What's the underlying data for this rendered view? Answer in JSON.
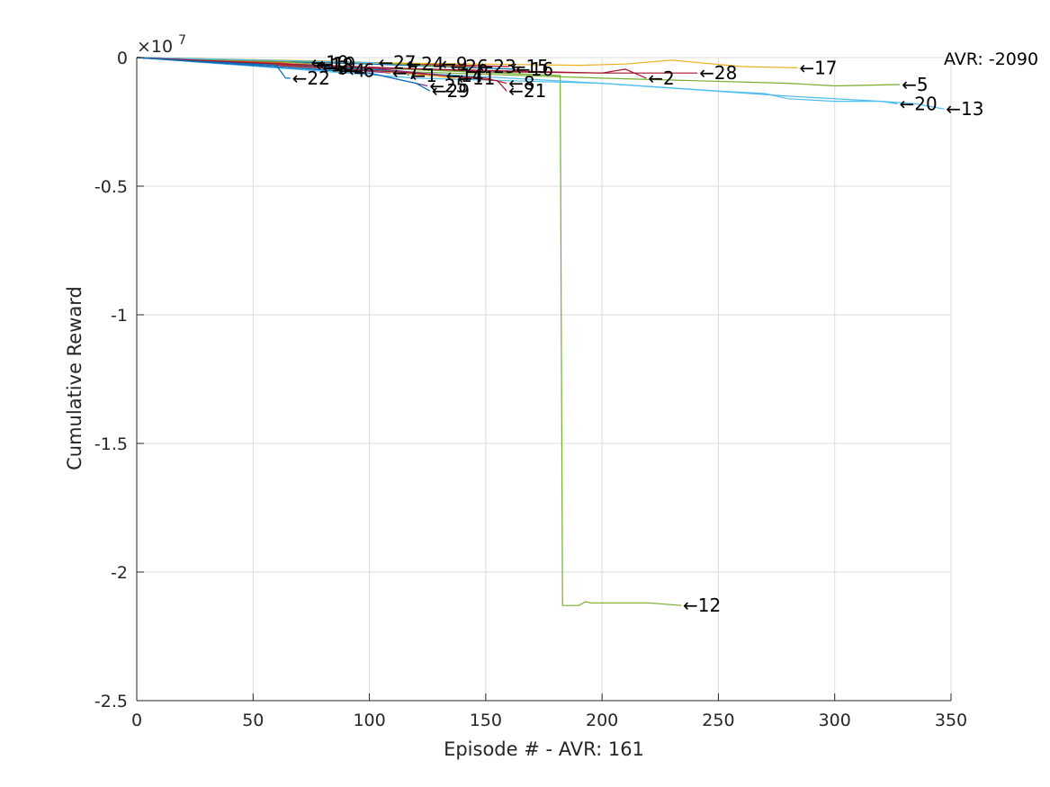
{
  "chart_data": {
    "type": "line",
    "title": "",
    "xlabel": "Episode # - AVR: 161",
    "ylabel": "Cumulative Reward",
    "xlim": [
      0,
      350
    ],
    "ylim": [
      -2.5,
      0
    ],
    "y_multiplier": "×10",
    "y_multiplier_exp": "7",
    "x_ticks": [
      "0",
      "50",
      "100",
      "150",
      "200",
      "250",
      "300",
      "350"
    ],
    "y_ticks": [
      "0",
      "-0.5",
      "-1",
      "-1.5",
      "-2",
      "-2.5"
    ],
    "grid": true,
    "annotation": "AVR: -2090",
    "series": [
      {
        "name": "1",
        "color": "#0072bd",
        "x": [
          0,
          60,
          100,
          115,
          117
        ],
        "y": [
          0,
          -0.025,
          -0.045,
          -0.055,
          -0.07
        ]
      },
      {
        "name": "2",
        "color": "#a2142f",
        "x": [
          0,
          80,
          150,
          200,
          210,
          219
        ],
        "y": [
          0,
          -0.03,
          -0.055,
          -0.06,
          -0.045,
          -0.08
        ]
      },
      {
        "name": "3",
        "color": "#d95319",
        "x": [
          0,
          50,
          79
        ],
        "y": [
          0,
          -0.02,
          -0.04
        ]
      },
      {
        "name": "4",
        "color": "#edb120",
        "x": [
          0,
          60,
          86
        ],
        "y": [
          0,
          -0.03,
          -0.05
        ]
      },
      {
        "name": "5",
        "color": "#77ac30",
        "x": [
          0,
          100,
          200,
          280,
          300,
          328
        ],
        "y": [
          0,
          -0.05,
          -0.08,
          -0.1,
          -0.11,
          -0.105
        ]
      },
      {
        "name": "6",
        "color": "#4dbeee",
        "x": [
          0,
          60,
          90
        ],
        "y": [
          0,
          -0.03,
          -0.05
        ]
      },
      {
        "name": "7",
        "color": "#7e2f8e",
        "x": [
          0,
          80,
          109
        ],
        "y": [
          0,
          -0.04,
          -0.06
        ]
      },
      {
        "name": "8",
        "color": "#a2142f",
        "x": [
          0,
          100,
          150,
          159
        ],
        "y": [
          0,
          -0.05,
          -0.08,
          -0.1
        ]
      },
      {
        "name": "9",
        "color": "#0072bd",
        "x": [
          0,
          100,
          130
        ],
        "y": [
          0,
          -0.02,
          -0.025
        ]
      },
      {
        "name": "10",
        "color": "#d95319",
        "x": [
          0,
          50,
          74
        ],
        "y": [
          0,
          -0.015,
          -0.02
        ]
      },
      {
        "name": "11",
        "color": "#edb120",
        "x": [
          0,
          100,
          137
        ],
        "y": [
          0,
          -0.05,
          -0.08
        ]
      },
      {
        "name": "12",
        "color": "#77ac30",
        "x": [
          0,
          100,
          182,
          183,
          190,
          193,
          195,
          220,
          234
        ],
        "y": [
          0,
          -0.04,
          -0.07,
          -2.13,
          -2.13,
          -2.115,
          -2.12,
          -2.12,
          -2.13
        ]
      },
      {
        "name": "13",
        "color": "#4dbeee",
        "x": [
          0,
          100,
          200,
          250,
          270,
          280,
          300,
          320,
          335,
          347
        ],
        "y": [
          0,
          -0.05,
          -0.1,
          -0.13,
          -0.14,
          -0.16,
          -0.17,
          -0.17,
          -0.18,
          -0.2
        ]
      },
      {
        "name": "14",
        "color": "#7e2f8e",
        "x": [
          0,
          100,
          132
        ],
        "y": [
          0,
          -0.04,
          -0.07
        ]
      },
      {
        "name": "15",
        "color": "#a2142f",
        "x": [
          0,
          100,
          160
        ],
        "y": [
          0,
          -0.02,
          -0.035
        ]
      },
      {
        "name": "16",
        "color": "#0072bd",
        "x": [
          0,
          100,
          162
        ],
        "y": [
          0,
          -0.025,
          -0.045
        ]
      },
      {
        "name": "17",
        "color": "#edb120",
        "x": [
          0,
          100,
          190,
          210,
          230,
          260,
          284
        ],
        "y": [
          0,
          -0.02,
          -0.03,
          -0.025,
          -0.01,
          -0.035,
          -0.04
        ]
      },
      {
        "name": "18",
        "color": "#d95319",
        "x": [
          0,
          60,
          76
        ],
        "y": [
          0,
          -0.02,
          -0.03
        ]
      },
      {
        "name": "19",
        "color": "#77ac30",
        "x": [
          0,
          60,
          77
        ],
        "y": [
          0,
          -0.015,
          -0.025
        ]
      },
      {
        "name": "20",
        "color": "#4dbeee",
        "x": [
          0,
          120,
          200,
          280,
          320,
          327
        ],
        "y": [
          0,
          -0.08,
          -0.1,
          -0.15,
          -0.17,
          -0.18
        ]
      },
      {
        "name": "21",
        "color": "#a2142f",
        "x": [
          0,
          120,
          155,
          159
        ],
        "y": [
          0,
          -0.06,
          -0.09,
          -0.13
        ]
      },
      {
        "name": "22",
        "color": "#0072bd",
        "x": [
          0,
          60,
          64,
          66
        ],
        "y": [
          0,
          -0.03,
          -0.08,
          -0.08
        ]
      },
      {
        "name": "23",
        "color": "#d95319",
        "x": [
          0,
          100,
          146
        ],
        "y": [
          0,
          -0.02,
          -0.035
        ]
      },
      {
        "name": "24",
        "color": "#edb120",
        "x": [
          0,
          90,
          115
        ],
        "y": [
          0,
          -0.015,
          -0.025
        ]
      },
      {
        "name": "25",
        "color": "#7e2f8e",
        "x": [
          0,
          100,
          125
        ],
        "y": [
          0,
          -0.06,
          -0.11
        ]
      },
      {
        "name": "26",
        "color": "#77ac30",
        "x": [
          0,
          100,
          134
        ],
        "y": [
          0,
          -0.02,
          -0.035
        ]
      },
      {
        "name": "27",
        "color": "#4dbeee",
        "x": [
          0,
          80,
          103
        ],
        "y": [
          0,
          -0.015,
          -0.02
        ]
      },
      {
        "name": "28",
        "color": "#a2142f",
        "x": [
          0,
          100,
          200,
          241
        ],
        "y": [
          0,
          -0.04,
          -0.06,
          -0.06
        ]
      },
      {
        "name": "29",
        "color": "#0072bd",
        "x": [
          0,
          100,
          120,
          126
        ],
        "y": [
          0,
          -0.06,
          -0.1,
          -0.13
        ]
      }
    ]
  }
}
